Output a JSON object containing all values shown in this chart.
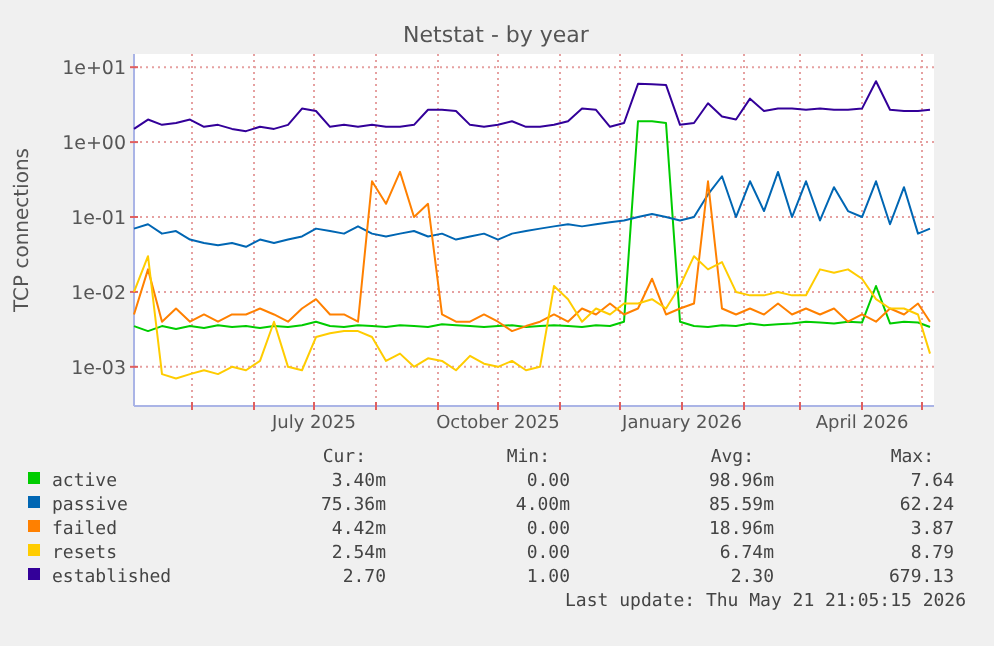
{
  "chart_data": {
    "type": "line",
    "title": "Netstat - by year",
    "ylabel": "TCP connections",
    "log": true,
    "grid": true,
    "legend": "bottom",
    "marker": "none",
    "line_style": "solid",
    "xlim": [
      "2025-04-02",
      "2026-05-07"
    ],
    "xticks": [
      {
        "value": "2025-05-01",
        "label": null
      },
      {
        "value": "2025-06-01",
        "label": null
      },
      {
        "value": "2025-07-01",
        "label": "July 2025"
      },
      {
        "value": "2025-08-01",
        "label": null
      },
      {
        "value": "2025-09-01",
        "label": null
      },
      {
        "value": "2025-10-01",
        "label": "October 2025"
      },
      {
        "value": "2025-11-01",
        "label": null
      },
      {
        "value": "2025-12-01",
        "label": null
      },
      {
        "value": "2026-01-01",
        "label": "January 2026"
      },
      {
        "value": "2026-02-01",
        "label": null
      },
      {
        "value": "2026-03-01",
        "label": null
      },
      {
        "value": "2026-04-01",
        "label": "April 2026"
      },
      {
        "value": "2026-05-01",
        "label": null
      }
    ],
    "ylim": [
      0.0003,
      15
    ],
    "yticks": [
      {
        "value": 0.001,
        "label": "1e-03"
      },
      {
        "value": 0.01,
        "label": "1e-02"
      },
      {
        "value": 0.1,
        "label": "1e-01"
      },
      {
        "value": 1,
        "label": "1e+00"
      },
      {
        "value": 10,
        "label": "1e+01"
      }
    ],
    "x": [
      "2025-04-02",
      "2025-04-09",
      "2025-04-16",
      "2025-04-23",
      "2025-04-30",
      "2025-05-07",
      "2025-05-14",
      "2025-05-21",
      "2025-05-28",
      "2025-06-04",
      "2025-06-11",
      "2025-06-18",
      "2025-06-25",
      "2025-07-02",
      "2025-07-09",
      "2025-07-16",
      "2025-07-23",
      "2025-07-30",
      "2025-08-06",
      "2025-08-13",
      "2025-08-20",
      "2025-08-27",
      "2025-09-03",
      "2025-09-10",
      "2025-09-17",
      "2025-09-24",
      "2025-10-01",
      "2025-10-08",
      "2025-10-15",
      "2025-10-22",
      "2025-10-29",
      "2025-11-05",
      "2025-11-12",
      "2025-11-19",
      "2025-11-26",
      "2025-12-03",
      "2025-12-10",
      "2025-12-17",
      "2025-12-24",
      "2025-12-31",
      "2026-01-07",
      "2026-01-14",
      "2026-01-21",
      "2026-01-28",
      "2026-02-04",
      "2026-02-11",
      "2026-02-18",
      "2026-02-25",
      "2026-03-04",
      "2026-03-11",
      "2026-03-18",
      "2026-03-25",
      "2026-04-01",
      "2026-04-08",
      "2026-04-15",
      "2026-04-22",
      "2026-04-29",
      "2026-05-05"
    ],
    "series": [
      {
        "name": "active",
        "color": "#00cc00",
        "values": [
          0.0035,
          0.003,
          0.0035,
          0.0032,
          0.0035,
          0.0033,
          0.0036,
          0.0034,
          0.0035,
          0.0033,
          0.0035,
          0.0034,
          0.0036,
          0.004,
          0.0035,
          0.0034,
          0.0036,
          0.0035,
          0.0034,
          0.0036,
          0.0035,
          0.0034,
          0.0037,
          0.0036,
          0.0035,
          0.0034,
          0.0035,
          0.0036,
          0.0034,
          0.0035,
          0.0036,
          0.0035,
          0.0034,
          0.0036,
          0.0035,
          0.004,
          1.9,
          1.9,
          1.8,
          0.004,
          0.0035,
          0.0034,
          0.0036,
          0.0035,
          0.0038,
          0.0036,
          0.0037,
          0.0038,
          0.004,
          0.0039,
          0.0038,
          0.004,
          0.0039,
          0.012,
          0.0038,
          0.004,
          0.0039,
          0.0034
        ]
      },
      {
        "name": "passive",
        "color": "#0066b3",
        "values": [
          0.07,
          0.08,
          0.06,
          0.065,
          0.05,
          0.045,
          0.042,
          0.045,
          0.04,
          0.05,
          0.045,
          0.05,
          0.055,
          0.07,
          0.065,
          0.06,
          0.075,
          0.06,
          0.055,
          0.06,
          0.065,
          0.055,
          0.06,
          0.05,
          0.055,
          0.06,
          0.05,
          0.06,
          0.065,
          0.07,
          0.075,
          0.08,
          0.075,
          0.08,
          0.085,
          0.09,
          0.1,
          0.11,
          0.1,
          0.09,
          0.1,
          0.2,
          0.35,
          0.1,
          0.3,
          0.12,
          0.4,
          0.1,
          0.3,
          0.09,
          0.25,
          0.12,
          0.1,
          0.3,
          0.08,
          0.25,
          0.06,
          0.07
        ]
      },
      {
        "name": "failed",
        "color": "#ff8000",
        "values": [
          0.005,
          0.02,
          0.004,
          0.006,
          0.004,
          0.005,
          0.004,
          0.005,
          0.005,
          0.006,
          0.005,
          0.004,
          0.006,
          0.008,
          0.005,
          0.005,
          0.004,
          0.3,
          0.15,
          0.4,
          0.1,
          0.15,
          0.005,
          0.004,
          0.004,
          0.005,
          0.004,
          0.003,
          0.0035,
          0.004,
          0.005,
          0.004,
          0.006,
          0.005,
          0.007,
          0.005,
          0.006,
          0.015,
          0.005,
          0.006,
          0.007,
          0.3,
          0.006,
          0.005,
          0.006,
          0.005,
          0.007,
          0.005,
          0.006,
          0.005,
          0.006,
          0.004,
          0.005,
          0.004,
          0.006,
          0.005,
          0.007,
          0.004
        ]
      },
      {
        "name": "resets",
        "color": "#ffcc00",
        "values": [
          0.01,
          0.03,
          0.0008,
          0.0007,
          0.0008,
          0.0009,
          0.0008,
          0.001,
          0.0009,
          0.0012,
          0.004,
          0.001,
          0.0009,
          0.0025,
          0.0028,
          0.003,
          0.003,
          0.0025,
          0.0012,
          0.0015,
          0.001,
          0.0013,
          0.0012,
          0.0009,
          0.0014,
          0.0011,
          0.001,
          0.0012,
          0.0009,
          0.001,
          0.012,
          0.008,
          0.004,
          0.006,
          0.005,
          0.007,
          0.007,
          0.008,
          0.006,
          0.012,
          0.03,
          0.02,
          0.025,
          0.01,
          0.009,
          0.009,
          0.01,
          0.009,
          0.009,
          0.02,
          0.018,
          0.02,
          0.015,
          0.008,
          0.006,
          0.006,
          0.005,
          0.0015
        ]
      },
      {
        "name": "established",
        "color": "#330099",
        "values": [
          1.5,
          2.0,
          1.7,
          1.8,
          2.0,
          1.6,
          1.7,
          1.5,
          1.4,
          1.6,
          1.5,
          1.7,
          2.8,
          2.6,
          1.6,
          1.7,
          1.6,
          1.7,
          1.6,
          1.6,
          1.7,
          2.7,
          2.7,
          2.6,
          1.7,
          1.6,
          1.7,
          1.9,
          1.6,
          1.6,
          1.7,
          1.9,
          2.8,
          2.7,
          1.6,
          1.8,
          6.0,
          5.9,
          5.8,
          1.7,
          1.8,
          3.3,
          2.2,
          2.0,
          3.8,
          2.6,
          2.8,
          2.8,
          2.7,
          2.8,
          2.7,
          2.7,
          2.8,
          6.5,
          2.7,
          2.6,
          2.6,
          2.7
        ]
      }
    ],
    "annotations": [
      "Cur:",
      "Min:",
      "Avg:",
      "Max:",
      "3.40m",
      "0.00",
      "98.96m",
      "7.64",
      "75.36m",
      "4.00m",
      "85.59m",
      "62.24",
      "4.42m",
      "0.00",
      "18.96m",
      "3.87",
      "2.54m",
      "0.00",
      "6.74m",
      "8.79",
      "2.70",
      "1.00",
      "2.30",
      "679.13",
      "Last update: Thu May 21 21:05:15 2026"
    ]
  }
}
